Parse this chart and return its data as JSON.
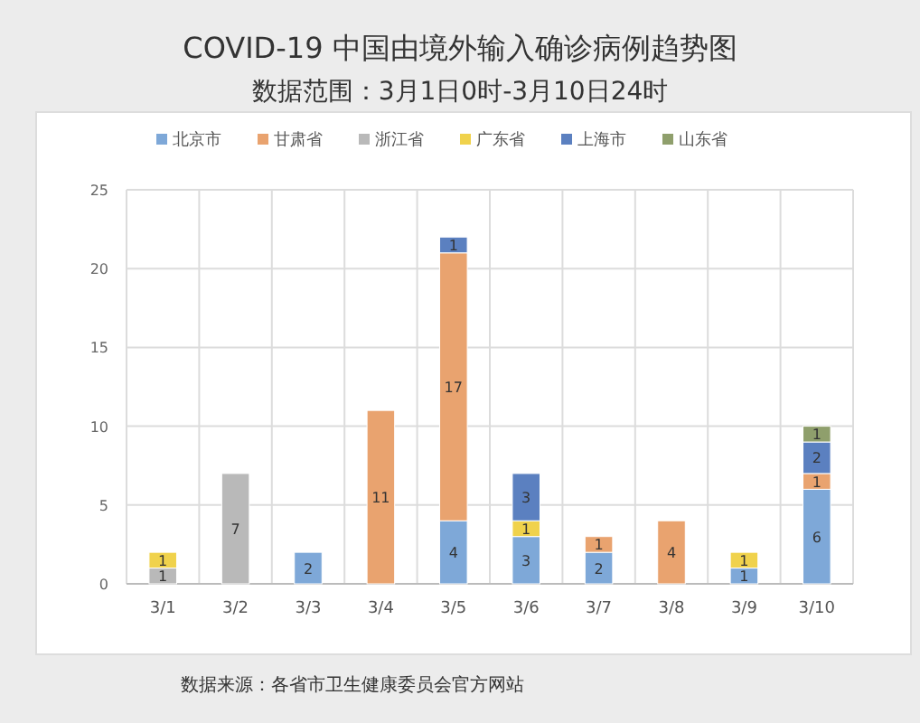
{
  "chart_data": {
    "type": "bar",
    "stacked": true,
    "title": "COVID-19 中国由境外输入确诊病例趋势图",
    "subtitle": "数据范围：3月1日0时-3月10日24时",
    "categories": [
      "3/1",
      "3/2",
      "3/3",
      "3/4",
      "3/5",
      "3/6",
      "3/7",
      "3/8",
      "3/9",
      "3/10"
    ],
    "series": [
      {
        "name": "北京市",
        "color": "#7ea8d8",
        "values": [
          null,
          null,
          2,
          null,
          4,
          3,
          2,
          null,
          1,
          6
        ]
      },
      {
        "name": "甘肃省",
        "color": "#e9a36f",
        "values": [
          null,
          null,
          null,
          11,
          17,
          null,
          1,
          4,
          null,
          1
        ]
      },
      {
        "name": "浙江省",
        "color": "#b9b9b9",
        "values": [
          1,
          7,
          null,
          null,
          null,
          null,
          null,
          null,
          null,
          null
        ]
      },
      {
        "name": "广东省",
        "color": "#f0d24c",
        "values": [
          1,
          null,
          null,
          null,
          null,
          1,
          null,
          null,
          1,
          null
        ]
      },
      {
        "name": "上海市",
        "color": "#5b80c0",
        "values": [
          null,
          null,
          null,
          null,
          1,
          3,
          null,
          null,
          null,
          2
        ]
      },
      {
        "name": "山东省",
        "color": "#8f9f6c",
        "values": [
          null,
          null,
          null,
          null,
          null,
          null,
          null,
          null,
          null,
          1
        ]
      }
    ],
    "ylim": [
      0,
      25
    ],
    "yticks": [
      0,
      5,
      10,
      15,
      20,
      25
    ],
    "grid": true,
    "legend": "top",
    "data_labels": true,
    "annotations": [
      "数据来源：各省市卫生健康委员会官方网站"
    ]
  }
}
